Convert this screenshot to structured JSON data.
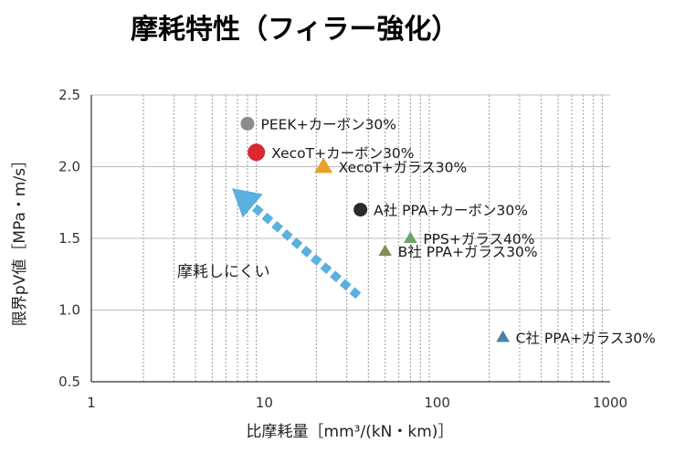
{
  "chart_data": {
    "type": "scatter",
    "title": "摩耗特性（フィラー強化）",
    "xlabel": "比摩耗量［mm³/(kN・km)］",
    "ylabel": "限界pV値［MPa・m/s］",
    "xscale": "log",
    "xlim": [
      1,
      1000
    ],
    "ylim": [
      0.5,
      2.5
    ],
    "x_ticks": [
      {
        "value": 1,
        "label": "1"
      },
      {
        "value": 10,
        "label": "10"
      },
      {
        "value": 100,
        "label": "100"
      },
      {
        "value": 1000,
        "label": "1000"
      }
    ],
    "y_ticks": [
      {
        "value": 0.5,
        "label": "0.5"
      },
      {
        "value": 1.0,
        "label": "1.0"
      },
      {
        "value": 1.5,
        "label": "1.5"
      },
      {
        "value": 2.0,
        "label": "2.0"
      },
      {
        "value": 2.5,
        "label": "2.5"
      }
    ],
    "grid": {
      "x_minor": true,
      "y_major": true
    },
    "points": [
      {
        "label": "PEEK+カーボン30%",
        "x": 8.0,
        "y": 2.3,
        "marker": "circle",
        "color": "#8c8c8c",
        "size": 7.5
      },
      {
        "label": "XecoT+カーボン30%",
        "x": 9.0,
        "y": 2.1,
        "marker": "circle",
        "color": "#d9282e",
        "size": 9.5
      },
      {
        "label": "XecoT+ガラス30%",
        "x": 22.0,
        "y": 2.0,
        "marker": "triangle",
        "color": "#e8a22b",
        "size": 9.5
      },
      {
        "label": "A社 PPA+カーボン30%",
        "x": 36.0,
        "y": 1.7,
        "marker": "circle",
        "color": "#2a2a2a",
        "size": 7.5
      },
      {
        "label": "PPS+ガラス40%",
        "x": 70.0,
        "y": 1.5,
        "marker": "triangle",
        "color": "#6aa46a",
        "size": 7
      },
      {
        "label": "B社 PPA+ガラス30%",
        "x": 50.0,
        "y": 1.41,
        "marker": "triangle",
        "color": "#8a8a5a",
        "size": 7
      },
      {
        "label": "C社 PPA+ガラス30%",
        "x": 240.0,
        "y": 0.81,
        "marker": "triangle",
        "color": "#4a7fa8",
        "size": 7
      }
    ],
    "annotation": {
      "text": "摩耗しにくい",
      "arrow_from": [
        35,
        1.1
      ],
      "arrow_to": [
        6.5,
        1.85
      ],
      "color": "#5ab0de"
    }
  }
}
